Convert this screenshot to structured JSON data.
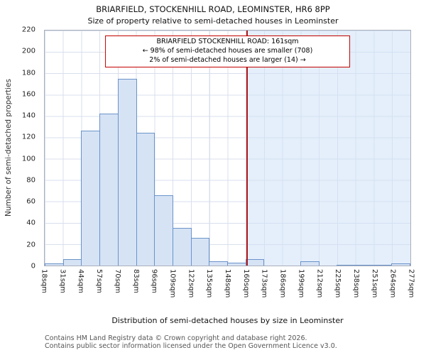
{
  "annotation": {
    "line1": "BRIARFIELD STOCKENHILL ROAD: 161sqm",
    "line2": "← 98% of semi-detached houses are smaller (708)",
    "line3": "2% of semi-detached houses are larger (14) →"
  },
  "footer": {
    "line1": "Contains HM Land Registry data © Crown copyright and database right 2026.",
    "line2": "Contains public sector information licensed under the Open Government Licence v3.0."
  },
  "chart_data": {
    "type": "bar",
    "title": "BRIARFIELD, STOCKENHILL ROAD, LEOMINSTER, HR6 8PP",
    "subtitle": "Size of property relative to semi-detached houses in Leominster",
    "xlabel": "Distribution of semi-detached houses by size in Leominster",
    "ylabel": "Number of semi-detached properties",
    "bin_edges_sqm": [
      18,
      31,
      44,
      57,
      70,
      83,
      96,
      109,
      122,
      135,
      148,
      160,
      173,
      186,
      199,
      212,
      225,
      238,
      251,
      264,
      277
    ],
    "tick_labels": [
      "18sqm",
      "31sqm",
      "44sqm",
      "57sqm",
      "70sqm",
      "83sqm",
      "96sqm",
      "109sqm",
      "122sqm",
      "135sqm",
      "148sqm",
      "160sqm",
      "173sqm",
      "186sqm",
      "199sqm",
      "212sqm",
      "225sqm",
      "238sqm",
      "251sqm",
      "264sqm",
      "277sqm"
    ],
    "values": [
      2,
      6,
      126,
      142,
      175,
      124,
      66,
      35,
      26,
      4,
      3,
      6,
      0,
      0,
      4,
      0,
      1,
      1,
      1,
      2
    ],
    "ylim": [
      0,
      220
    ],
    "yticks": [
      0,
      20,
      40,
      60,
      80,
      100,
      120,
      140,
      160,
      180,
      200,
      220
    ],
    "marker": {
      "value_sqm": 161,
      "label": "161sqm"
    },
    "smaller_count": 708,
    "smaller_pct": 98,
    "larger_count": 14,
    "larger_pct": 2,
    "grid": true,
    "legend_position": "none",
    "colors": {
      "bar_fill": "#d6e3f5",
      "bar_border": "#6b93c9",
      "marker_line": "#b01717",
      "shade": "#cfe2f8",
      "grid": "#d9dfec"
    }
  }
}
